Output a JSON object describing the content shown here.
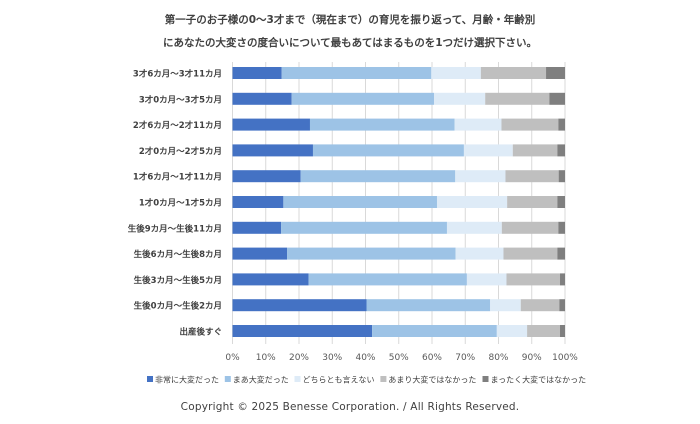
{
  "chart_data": {
    "type": "bar",
    "orientation": "horizontal",
    "stacked": true,
    "title_lines": [
      "第一子のお子様の0～3才まで（現在まで）の育児を振り返って、月齢・年齢別",
      "にあなたの大変さの度合いについて最もあてはまるものを1つだけ選択下さい。"
    ],
    "categories": [
      "3才6カ月～3才11カ月",
      "3才0カ月～3才5カ月",
      "2才6カ月～2才11カ月",
      "2才0カ月～2才5カ月",
      "1才6カ月～1才11カ月",
      "1才0カ月～1才5カ月",
      "生後9カ月～生後11カ月",
      "生後6カ月～生後8カ月",
      "生後3カ月～生後5カ月",
      "生後0カ月～生後2カ月",
      "出産後すぐ"
    ],
    "series": [
      {
        "name": "非常に大変だった",
        "color": "#4472c4",
        "values": [
          14.8,
          17.8,
          23.3,
          24.2,
          20.5,
          15.3,
          14.6,
          16.4,
          22.9,
          40.3,
          42.0
        ]
      },
      {
        "name": "まあ大変だった",
        "color": "#9dc3e6",
        "values": [
          45.0,
          42.8,
          43.5,
          45.4,
          46.5,
          46.2,
          49.9,
          50.7,
          47.6,
          37.2,
          37.5
        ]
      },
      {
        "name": "どちらとも言えない",
        "color": "#deebf7",
        "values": [
          14.9,
          15.4,
          14.1,
          14.7,
          15.1,
          21.1,
          16.5,
          14.4,
          11.9,
          9.2,
          9.1
        ]
      },
      {
        "name": "あまり大変ではなかった",
        "color": "#bfbfbf",
        "values": [
          19.6,
          19.3,
          17.1,
          13.4,
          16.0,
          15.1,
          17.0,
          16.2,
          16.1,
          11.6,
          9.9
        ]
      },
      {
        "name": "まったく大変ではなかった",
        "color": "#7f7f7f",
        "values": [
          5.7,
          4.7,
          2.0,
          2.3,
          1.9,
          2.3,
          2.0,
          2.3,
          1.5,
          1.7,
          1.5
        ]
      }
    ],
    "xlim": [
      0,
      100
    ],
    "xticks": [
      "0%",
      "10%",
      "20%",
      "30%",
      "40%",
      "50%",
      "60%",
      "70%",
      "80%",
      "90%",
      "100%"
    ],
    "grid": true,
    "legend_position": "bottom"
  },
  "copyright": "Copyright © 2025 Benesse Corporation. / All Rights Reserved."
}
